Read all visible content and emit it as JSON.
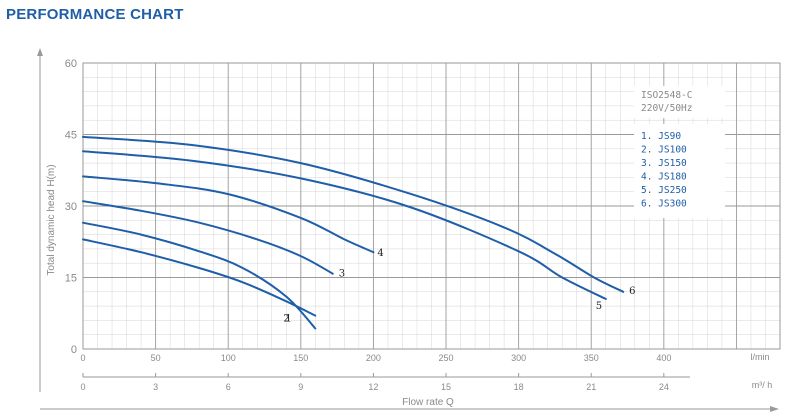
{
  "heading": "PERFORMANCE CHART",
  "chart_data": {
    "type": "line",
    "standard": "ISO2548-C",
    "power": "220V/50Hz",
    "ylabel": "Total dynamic head H(m)",
    "xlabel": "Flow rate Q",
    "x_unit_primary": "l/min",
    "x_unit_secondary": "m³/ h",
    "xlim": [
      0,
      480
    ],
    "ylim": [
      0,
      60
    ],
    "x_ticks": [
      "0",
      "50",
      "100",
      "150",
      "200",
      "250",
      "300",
      "350",
      "400"
    ],
    "x_ticks_secondary": [
      "0",
      "3",
      "6",
      "9",
      "12",
      "15",
      "18",
      "21",
      "24"
    ],
    "y_ticks": [
      "0",
      "15",
      "30",
      "45",
      "60"
    ],
    "grid": true,
    "legend_position": "right",
    "series_color": "#1f5ea8",
    "series": [
      {
        "name": "1. JS90",
        "label": "1",
        "points": [
          [
            0,
            23
          ],
          [
            40,
            20.3
          ],
          [
            80,
            17
          ],
          [
            110,
            14
          ],
          [
            140,
            10
          ],
          [
            160,
            7
          ]
        ]
      },
      {
        "name": "2. JS100",
        "label": "2",
        "points": [
          [
            0,
            26.5
          ],
          [
            40,
            24
          ],
          [
            80,
            20.5
          ],
          [
            110,
            17
          ],
          [
            140,
            11
          ],
          [
            160,
            4.3
          ]
        ]
      },
      {
        "name": "3. JS150",
        "label": "3",
        "points": [
          [
            0,
            31
          ],
          [
            40,
            29
          ],
          [
            80,
            26.5
          ],
          [
            120,
            23
          ],
          [
            150,
            19.5
          ],
          [
            172,
            15.8
          ]
        ]
      },
      {
        "name": "4. JS180",
        "label": "4",
        "points": [
          [
            0,
            36.2
          ],
          [
            50,
            34.8
          ],
          [
            100,
            32.5
          ],
          [
            150,
            27.5
          ],
          [
            180,
            23
          ],
          [
            200,
            20.3
          ]
        ]
      },
      {
        "name": "5. JS250",
        "label": "5",
        "points": [
          [
            0,
            41.5
          ],
          [
            75,
            39.5
          ],
          [
            150,
            35.8
          ],
          [
            225,
            29.8
          ],
          [
            300,
            20.5
          ],
          [
            330,
            15
          ],
          [
            360,
            10.5
          ]
        ]
      },
      {
        "name": "6. JS300",
        "label": "6",
        "points": [
          [
            0,
            44.5
          ],
          [
            75,
            42.8
          ],
          [
            150,
            39
          ],
          [
            225,
            32.6
          ],
          [
            290,
            25.5
          ],
          [
            325,
            20
          ],
          [
            352,
            15
          ],
          [
            372,
            12
          ]
        ]
      }
    ]
  }
}
